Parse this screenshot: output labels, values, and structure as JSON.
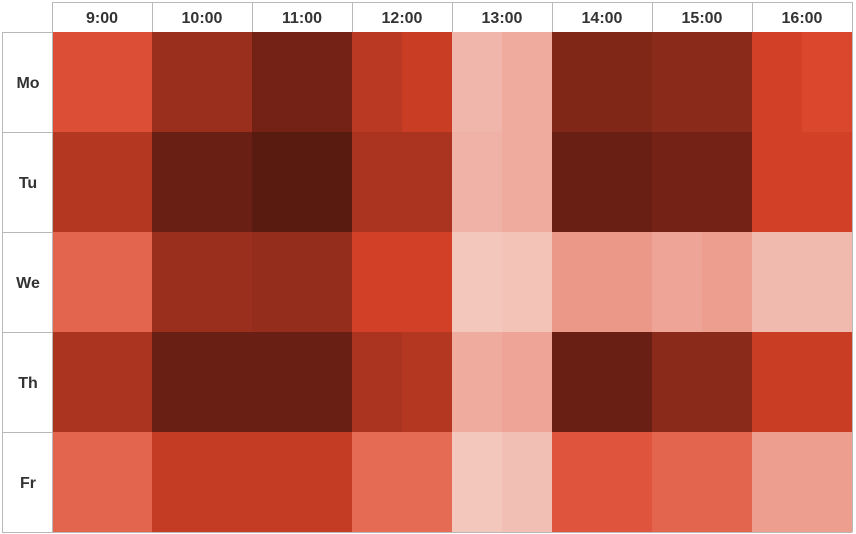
{
  "chart_data": {
    "type": "heatmap",
    "title": "",
    "xlabel": "",
    "ylabel": "",
    "columns": [
      "9:00",
      "10:00",
      "11:00",
      "12:00",
      "13:00",
      "14:00",
      "15:00",
      "16:00"
    ],
    "rows": [
      "Mo",
      "Tu",
      "We",
      "Th",
      "Fr"
    ],
    "subcolumns_per_column": 2,
    "values": [
      [
        0.55,
        0.55,
        0.8,
        0.8,
        0.92,
        0.92,
        0.7,
        0.65,
        0.18,
        0.22,
        0.88,
        0.88,
        0.85,
        0.85,
        0.62,
        0.58
      ],
      [
        0.72,
        0.72,
        0.95,
        0.95,
        1.0,
        1.0,
        0.75,
        0.75,
        0.2,
        0.22,
        0.95,
        0.95,
        0.92,
        0.92,
        0.62,
        0.62
      ],
      [
        0.45,
        0.45,
        0.8,
        0.8,
        0.82,
        0.82,
        0.62,
        0.62,
        0.1,
        0.12,
        0.28,
        0.28,
        0.24,
        0.26,
        0.16,
        0.16
      ],
      [
        0.75,
        0.75,
        0.95,
        0.95,
        0.95,
        0.95,
        0.75,
        0.72,
        0.22,
        0.24,
        0.95,
        0.95,
        0.85,
        0.85,
        0.65,
        0.65
      ],
      [
        0.45,
        0.45,
        0.66,
        0.66,
        0.66,
        0.66,
        0.42,
        0.42,
        0.1,
        0.14,
        0.52,
        0.52,
        0.45,
        0.45,
        0.26,
        0.26
      ]
    ],
    "color_scale": {
      "stops": [
        "#f7dcd4",
        "#f0b2a6",
        "#e7705a",
        "#d84228",
        "#9a2f1d",
        "#591a10"
      ],
      "value_domain": [
        0,
        1
      ]
    },
    "grid": true,
    "legend": "none"
  }
}
